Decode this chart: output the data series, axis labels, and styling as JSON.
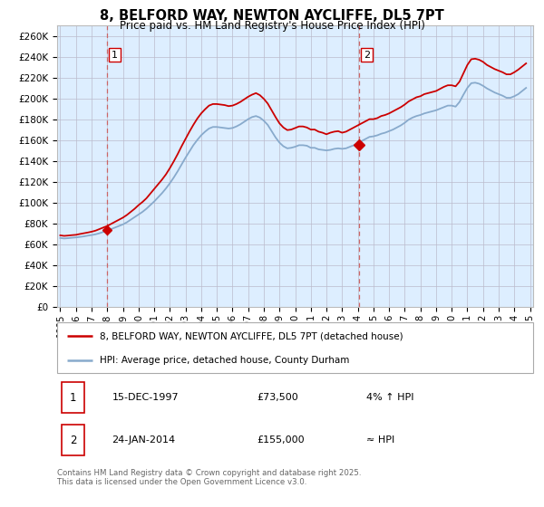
{
  "title": "8, BELFORD WAY, NEWTON AYCLIFFE, DL5 7PT",
  "subtitle": "Price paid vs. HM Land Registry's House Price Index (HPI)",
  "ylabel_ticks": [
    "£0",
    "£20K",
    "£40K",
    "£60K",
    "£80K",
    "£100K",
    "£120K",
    "£140K",
    "£160K",
    "£180K",
    "£200K",
    "£220K",
    "£240K",
    "£260K"
  ],
  "ytick_values": [
    0,
    20000,
    40000,
    60000,
    80000,
    100000,
    120000,
    140000,
    160000,
    180000,
    200000,
    220000,
    240000,
    260000
  ],
  "ylim": [
    0,
    270000
  ],
  "sale1_date": "15-DEC-1997",
  "sale1_price": 73500,
  "sale1_label": "4% ↑ HPI",
  "sale2_date": "24-JAN-2014",
  "sale2_price": 155000,
  "sale2_label": "≈ HPI",
  "legend_line1": "8, BELFORD WAY, NEWTON AYCLIFFE, DL5 7PT (detached house)",
  "legend_line2": "HPI: Average price, detached house, County Durham",
  "footer": "Contains HM Land Registry data © Crown copyright and database right 2025.\nThis data is licensed under the Open Government Licence v3.0.",
  "line_color_red": "#cc0000",
  "line_color_blue": "#88aacc",
  "background_color": "#ffffff",
  "chart_bg": "#ddeeff",
  "grid_color": "#bbbbcc",
  "sale_marker_color": "#cc0000",
  "dashed_line_color": "#cc6666",
  "sale1_x": 1997.96,
  "sale2_x": 2014.07,
  "xlim_left": 1994.8,
  "xlim_right": 2025.2,
  "xticks": [
    1995,
    1996,
    1997,
    1998,
    1999,
    2000,
    2001,
    2002,
    2003,
    2004,
    2005,
    2006,
    2007,
    2008,
    2009,
    2010,
    2011,
    2012,
    2013,
    2014,
    2015,
    2016,
    2017,
    2018,
    2019,
    2020,
    2021,
    2022,
    2023,
    2024,
    2025
  ],
  "hpi_x": [
    1995.0,
    1995.25,
    1995.5,
    1995.75,
    1996.0,
    1996.25,
    1996.5,
    1996.75,
    1997.0,
    1997.25,
    1997.5,
    1997.75,
    1998.0,
    1998.25,
    1998.5,
    1998.75,
    1999.0,
    1999.25,
    1999.5,
    1999.75,
    2000.0,
    2000.25,
    2000.5,
    2000.75,
    2001.0,
    2001.25,
    2001.5,
    2001.75,
    2002.0,
    2002.25,
    2002.5,
    2002.75,
    2003.0,
    2003.25,
    2003.5,
    2003.75,
    2004.0,
    2004.25,
    2004.5,
    2004.75,
    2005.0,
    2005.25,
    2005.5,
    2005.75,
    2006.0,
    2006.25,
    2006.5,
    2006.75,
    2007.0,
    2007.25,
    2007.5,
    2007.75,
    2008.0,
    2008.25,
    2008.5,
    2008.75,
    2009.0,
    2009.25,
    2009.5,
    2009.75,
    2010.0,
    2010.25,
    2010.5,
    2010.75,
    2011.0,
    2011.25,
    2011.5,
    2011.75,
    2012.0,
    2012.25,
    2012.5,
    2012.75,
    2013.0,
    2013.25,
    2013.5,
    2013.75,
    2014.0,
    2014.25,
    2014.5,
    2014.75,
    2015.0,
    2015.25,
    2015.5,
    2015.75,
    2016.0,
    2016.25,
    2016.5,
    2016.75,
    2017.0,
    2017.25,
    2017.5,
    2017.75,
    2018.0,
    2018.25,
    2018.5,
    2018.75,
    2019.0,
    2019.25,
    2019.5,
    2019.75,
    2020.0,
    2020.25,
    2020.5,
    2020.75,
    2021.0,
    2021.25,
    2021.5,
    2021.75,
    2022.0,
    2022.25,
    2022.5,
    2022.75,
    2023.0,
    2023.25,
    2023.5,
    2023.75,
    2024.0,
    2024.25,
    2024.5,
    2024.75
  ],
  "hpi_y": [
    66000,
    65500,
    65800,
    66200,
    66500,
    67000,
    67500,
    68200,
    68800,
    69500,
    70500,
    71800,
    73000,
    74500,
    76000,
    77500,
    79000,
    81000,
    83500,
    86000,
    88500,
    91000,
    94000,
    97500,
    101000,
    105000,
    109000,
    113500,
    118500,
    124000,
    130000,
    136500,
    143000,
    149000,
    155000,
    160000,
    164500,
    168000,
    171000,
    172500,
    172500,
    172000,
    171500,
    171000,
    171500,
    173000,
    175000,
    177500,
    180000,
    182000,
    183000,
    181500,
    178500,
    174500,
    168500,
    162500,
    157500,
    154000,
    152000,
    152500,
    153500,
    155000,
    155000,
    154500,
    152500,
    152500,
    151000,
    150500,
    150000,
    150500,
    151500,
    152000,
    151500,
    152000,
    153500,
    155000,
    157000,
    159000,
    161000,
    163000,
    163500,
    164500,
    166000,
    167000,
    168500,
    170000,
    172000,
    174000,
    176500,
    179500,
    181500,
    183000,
    184000,
    185500,
    186500,
    187500,
    188500,
    190000,
    191500,
    193000,
    193000,
    192000,
    196500,
    203500,
    210000,
    214500,
    215000,
    214000,
    212000,
    209500,
    207500,
    205500,
    204000,
    202500,
    200500,
    200500,
    202000,
    204000,
    207000,
    210000
  ],
  "red_x": [
    1995.0,
    1995.25,
    1995.5,
    1995.75,
    1996.0,
    1996.25,
    1996.5,
    1996.75,
    1997.0,
    1997.25,
    1997.5,
    1997.75,
    1998.0,
    1998.25,
    1998.5,
    1998.75,
    1999.0,
    1999.25,
    1999.5,
    1999.75,
    2000.0,
    2000.25,
    2000.5,
    2000.75,
    2001.0,
    2001.25,
    2001.5,
    2001.75,
    2002.0,
    2002.25,
    2002.5,
    2002.75,
    2003.0,
    2003.25,
    2003.5,
    2003.75,
    2004.0,
    2004.25,
    2004.5,
    2004.75,
    2005.0,
    2005.25,
    2005.5,
    2005.75,
    2006.0,
    2006.25,
    2006.5,
    2006.75,
    2007.0,
    2007.25,
    2007.5,
    2007.75,
    2008.0,
    2008.25,
    2008.5,
    2008.75,
    2009.0,
    2009.25,
    2009.5,
    2009.75,
    2010.0,
    2010.25,
    2010.5,
    2010.75,
    2011.0,
    2011.25,
    2011.5,
    2011.75,
    2012.0,
    2012.25,
    2012.5,
    2012.75,
    2013.0,
    2013.25,
    2013.5,
    2013.75,
    2014.0,
    2014.25,
    2014.5,
    2014.75,
    2015.0,
    2015.25,
    2015.5,
    2015.75,
    2016.0,
    2016.25,
    2016.5,
    2016.75,
    2017.0,
    2017.25,
    2017.5,
    2017.75,
    2018.0,
    2018.25,
    2018.5,
    2018.75,
    2019.0,
    2019.25,
    2019.5,
    2019.75,
    2020.0,
    2020.25,
    2020.5,
    2020.75,
    2021.0,
    2021.25,
    2021.5,
    2021.75,
    2022.0,
    2022.25,
    2022.5,
    2022.75,
    2023.0,
    2023.25,
    2023.5,
    2023.75,
    2024.0,
    2024.25,
    2024.5,
    2024.75
  ],
  "red_y": [
    68500,
    68000,
    68300,
    68700,
    69000,
    69800,
    70500,
    71200,
    72000,
    73000,
    74500,
    76000,
    77500,
    79500,
    81500,
    83500,
    85500,
    88000,
    91000,
    94000,
    97500,
    100500,
    104000,
    108500,
    113000,
    117500,
    122000,
    127000,
    133000,
    139500,
    146500,
    154000,
    161000,
    168000,
    174500,
    180500,
    185500,
    189500,
    193000,
    194500,
    194500,
    194000,
    193500,
    192500,
    193000,
    194500,
    196500,
    199000,
    201500,
    203500,
    205000,
    203000,
    199500,
    195000,
    188500,
    182000,
    176000,
    172000,
    169500,
    170000,
    171500,
    173000,
    173000,
    172000,
    170000,
    170000,
    168000,
    167000,
    165500,
    167000,
    168000,
    168500,
    167000,
    168000,
    170000,
    172000,
    174000,
    176000,
    178000,
    180000,
    180000,
    181000,
    183000,
    184000,
    185500,
    187500,
    189500,
    191500,
    194000,
    197000,
    199000,
    201000,
    202000,
    204000,
    205000,
    206000,
    207000,
    209000,
    211000,
    212500,
    212500,
    211500,
    216000,
    224000,
    232000,
    237500,
    238000,
    237000,
    235000,
    232000,
    230000,
    228000,
    226500,
    225000,
    223000,
    223000,
    225000,
    227500,
    230500,
    233500
  ]
}
